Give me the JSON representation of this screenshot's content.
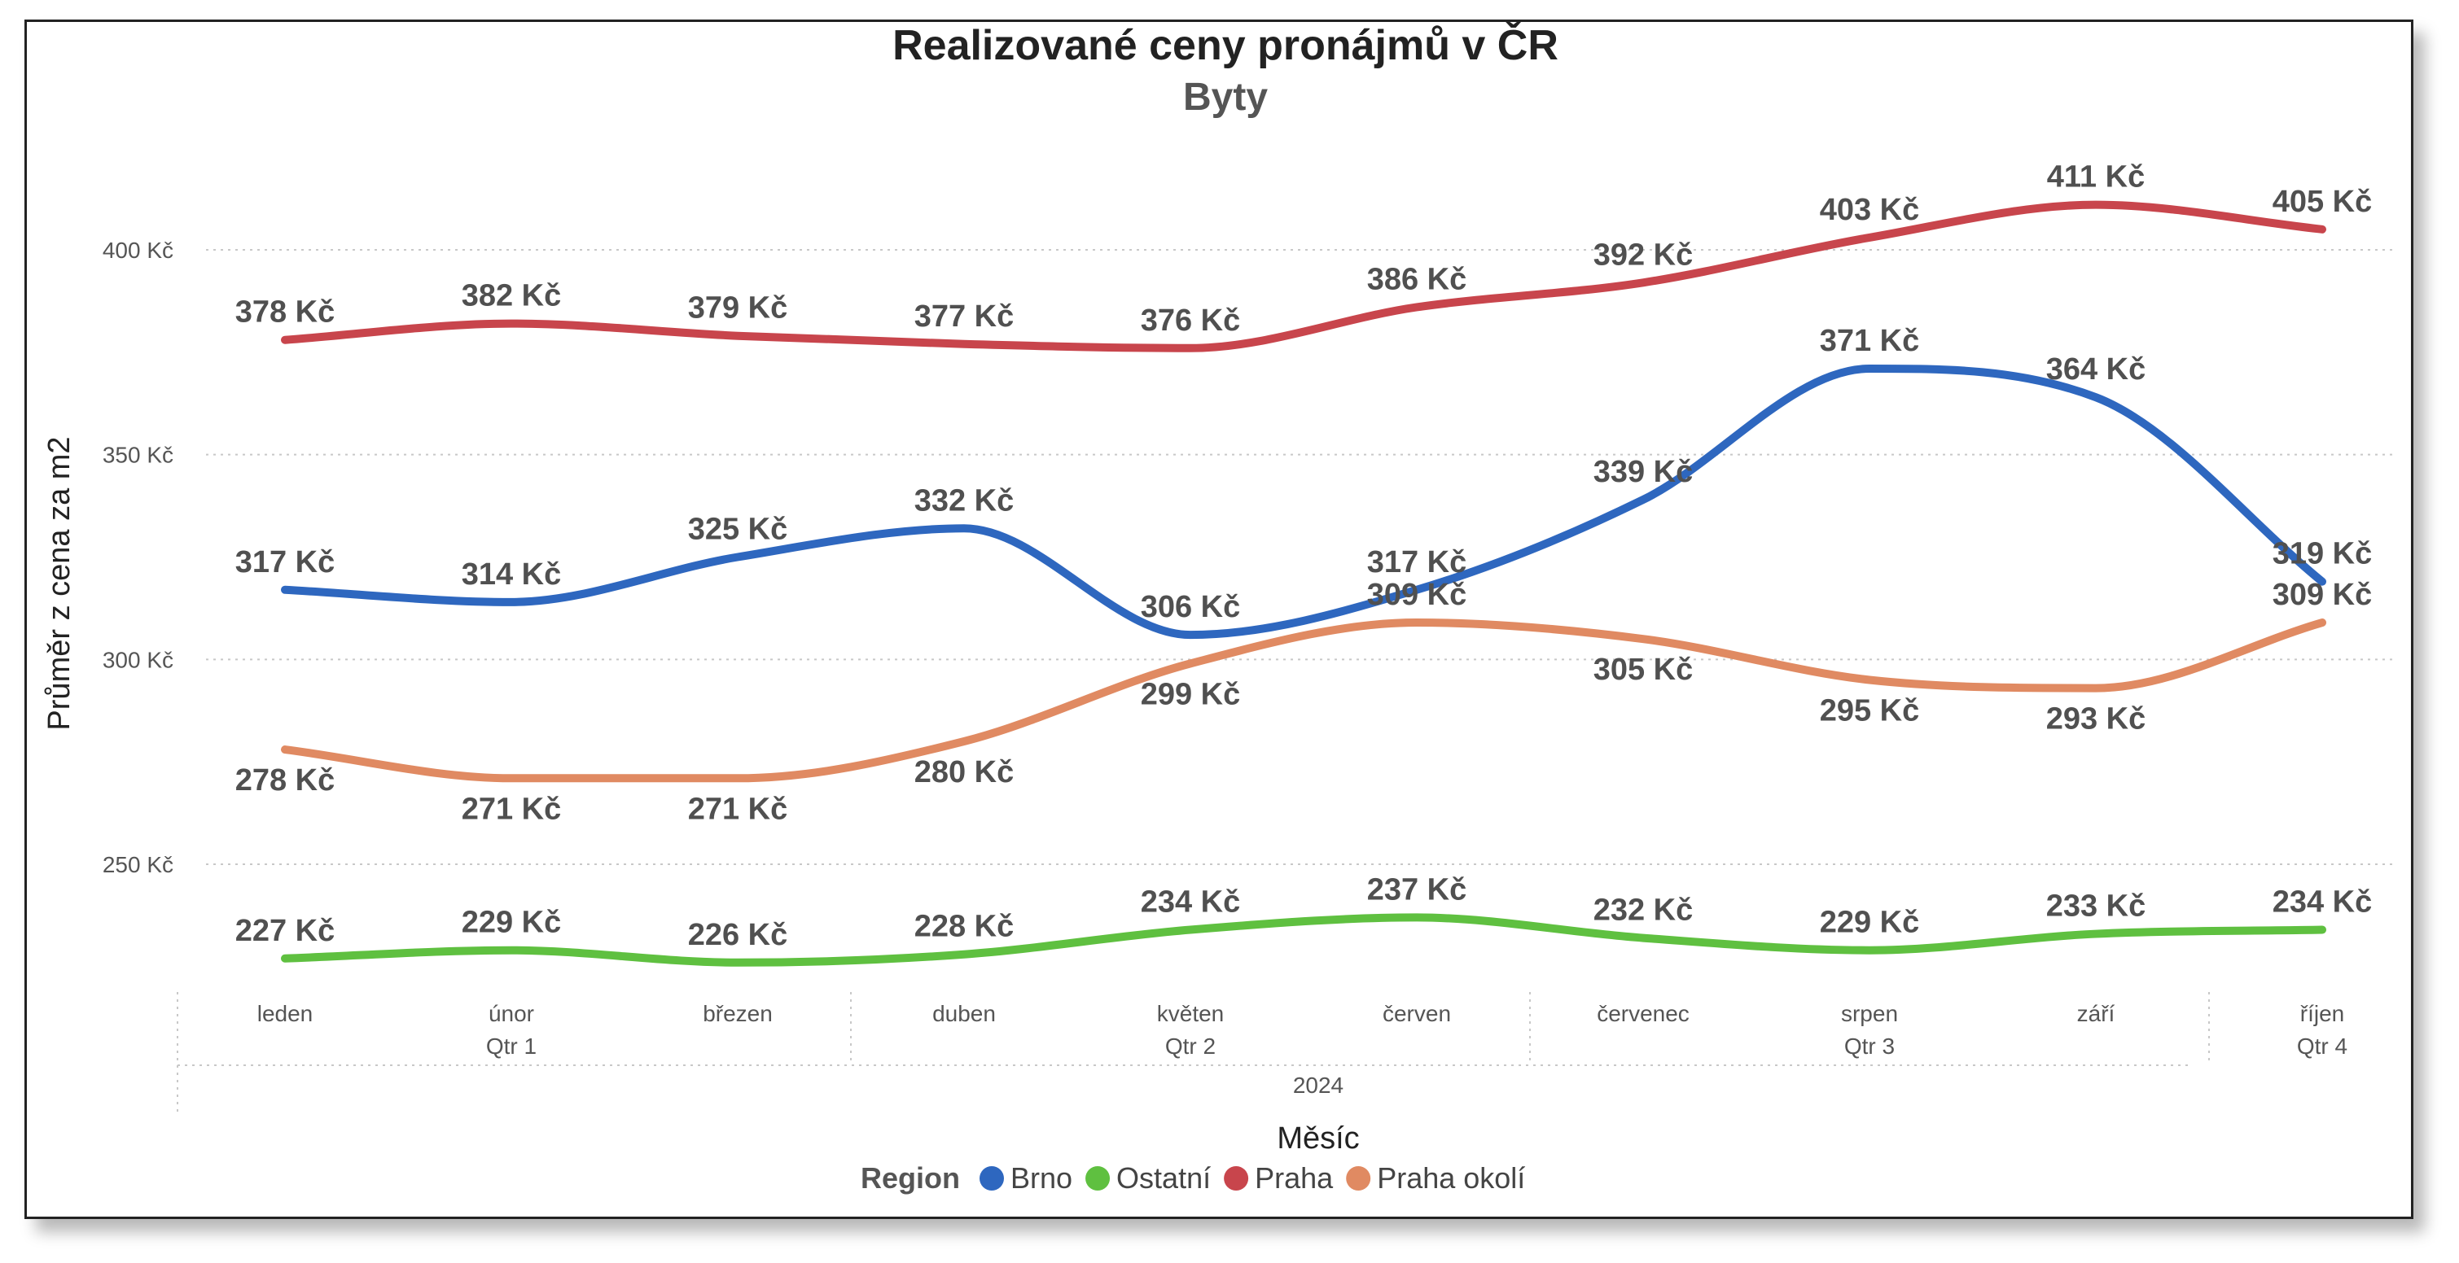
{
  "chart_data": {
    "type": "line",
    "title": "Realizované ceny pronájmů v ČR",
    "subtitle": "Byty",
    "xlabel": "Měsíc",
    "ylabel": "Průměr z cena za m2",
    "x_year": "2024",
    "categories": [
      "leden",
      "únor",
      "březen",
      "duben",
      "květen",
      "červen",
      "červenec",
      "srpen",
      "září",
      "říjen"
    ],
    "quarters": [
      {
        "label": "Qtr 1",
        "months": [
          "leden",
          "únor",
          "březen"
        ]
      },
      {
        "label": "Qtr 2",
        "months": [
          "duben",
          "květen",
          "červen"
        ]
      },
      {
        "label": "Qtr 3",
        "months": [
          "červenec",
          "srpen",
          "září"
        ]
      },
      {
        "label": "Qtr 4",
        "months": [
          "říjen"
        ]
      }
    ],
    "yticks": [
      {
        "value": 250,
        "label": "250 Kč"
      },
      {
        "value": 300,
        "label": "300 Kč"
      },
      {
        "value": 350,
        "label": "350 Kč"
      },
      {
        "value": 400,
        "label": "400 Kč"
      }
    ],
    "ylim": [
      220,
      420
    ],
    "grid": true,
    "legend_title": "Region",
    "legend_position": "bottom",
    "series": [
      {
        "name": "Brno",
        "color": "#2E67BF",
        "values": [
          317,
          314,
          325,
          332,
          306,
          317,
          339,
          371,
          364,
          319
        ],
        "labels": [
          "317 Kč",
          "314 Kč",
          "325 Kč",
          "332 Kč",
          "306 Kč",
          "317 Kč",
          "339 Kč",
          "371 Kč",
          "364 Kč",
          "319 Kč"
        ]
      },
      {
        "name": "Ostatní",
        "color": "#5FC040",
        "values": [
          227,
          229,
          226,
          228,
          234,
          237,
          232,
          229,
          233,
          234
        ],
        "labels": [
          "227 Kč",
          "229 Kč",
          "226 Kč",
          "228 Kč",
          "234 Kč",
          "237 Kč",
          "232 Kč",
          "229 Kč",
          "233 Kč",
          "234 Kč"
        ]
      },
      {
        "name": "Praha",
        "color": "#C8454C",
        "values": [
          378,
          382,
          379,
          377,
          376,
          386,
          392,
          403,
          411,
          405
        ],
        "labels": [
          "378 Kč",
          "382 Kč",
          "379 Kč",
          "377 Kč",
          "376 Kč",
          "386 Kč",
          "392 Kč",
          "403 Kč",
          "411 Kč",
          "405 Kč"
        ]
      },
      {
        "name": "Praha okolí",
        "color": "#E08A62",
        "values": [
          278,
          271,
          271,
          280,
          299,
          309,
          305,
          295,
          293,
          309
        ],
        "labels": [
          "278 Kč",
          "271 Kč",
          "271 Kč",
          "280 Kč",
          "299 Kč",
          "309 Kč",
          "305 Kč",
          "295 Kč",
          "293 Kč",
          "309 Kč"
        ]
      }
    ]
  }
}
